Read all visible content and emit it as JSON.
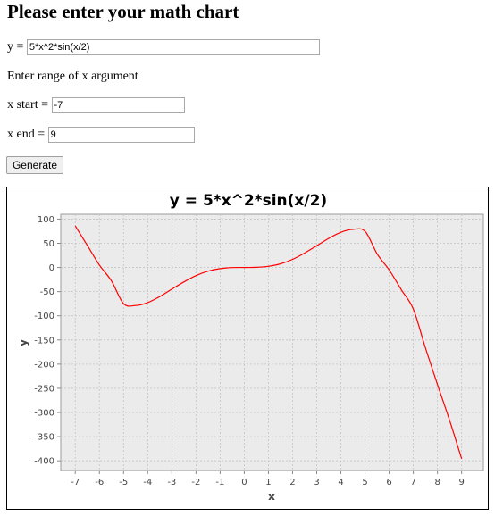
{
  "page": {
    "title": "Please enter your math chart",
    "formula_label": "y = ",
    "formula_value": "5*x^2*sin(x/2)",
    "range_label": "Enter range of x argument",
    "xstart_label": "x start = ",
    "xstart_value": "-7",
    "xend_label": "x end = ",
    "xend_value": "9",
    "generate_label": "Generate"
  },
  "chart_data": {
    "type": "line",
    "title": "y = 5*x^2*sin(x/2)",
    "xlabel": "x",
    "ylabel": "y",
    "xlim": [
      -7.6,
      9.9
    ],
    "ylim": [
      -420,
      110
    ],
    "x_ticks": [
      -7,
      -6,
      -5,
      -4,
      -3,
      -2,
      -1,
      0,
      1,
      2,
      3,
      4,
      5,
      6,
      7,
      8,
      9
    ],
    "y_ticks": [
      100,
      50,
      0,
      -50,
      -100,
      -150,
      -200,
      -250,
      -300,
      -350,
      -400
    ],
    "grid": true,
    "legend": false,
    "colors": {
      "line": "#ff0000",
      "plot_bg": "#ebebeb",
      "grid": "#c4c4c4"
    },
    "series": [
      {
        "x": [
          -7,
          -6.5,
          -6,
          -5.5,
          -5,
          -4.5,
          -4,
          -3.5,
          -3,
          -2.5,
          -2,
          -1.5,
          -1,
          -0.5,
          0,
          0.5,
          1,
          1.5,
          2,
          2.5,
          3,
          3.5,
          4,
          4.5,
          5,
          5.5,
          6,
          6.5,
          7,
          7.5,
          8,
          8.5,
          9
        ],
        "y": [
          86.0,
          45.8,
          5.1,
          -28.0,
          -74.8,
          -78.8,
          -72.7,
          -60.2,
          -44.9,
          -29.9,
          -16.8,
          -7.6,
          -2.4,
          -0.3,
          0,
          0.3,
          2.4,
          7.6,
          16.8,
          29.9,
          44.9,
          60.2,
          72.7,
          78.8,
          74.8,
          28.0,
          -5.1,
          -45.8,
          -86.0,
          -166.0,
          -242.2,
          -316.2,
          -395.7
        ]
      }
    ]
  }
}
